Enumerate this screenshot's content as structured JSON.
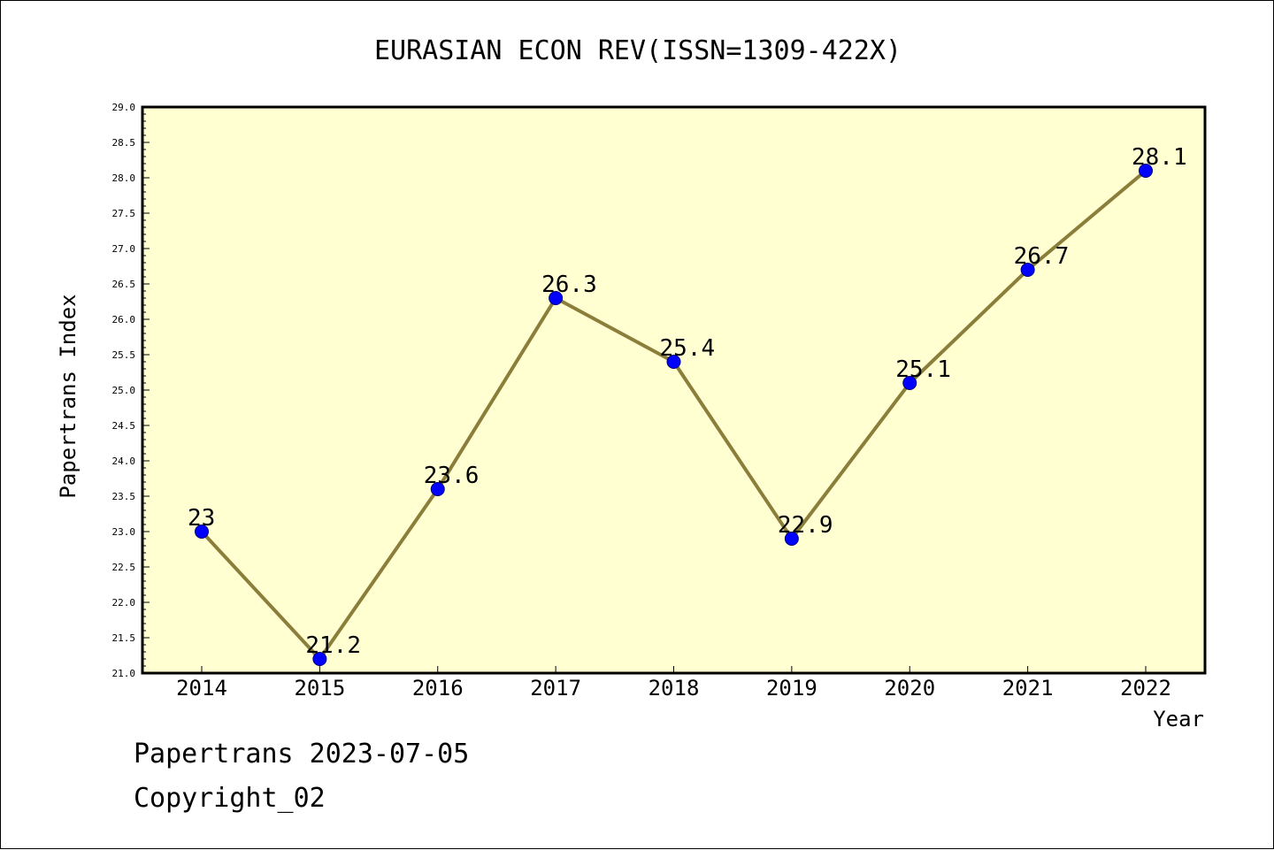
{
  "chart_data": {
    "type": "line",
    "title": "EURASIAN ECON REV(ISSN=1309-422X)",
    "xlabel": "Year",
    "ylabel": "Papertrans Index",
    "categories": [
      "2014",
      "2015",
      "2016",
      "2017",
      "2018",
      "2019",
      "2020",
      "2021",
      "2022"
    ],
    "series": [
      {
        "values": [
          23,
          21.2,
          23.6,
          26.3,
          25.4,
          22.9,
          25.1,
          26.7,
          28.1
        ],
        "labels": [
          "23",
          "21.2",
          "23.6",
          "26.3",
          "25.4",
          "22.9",
          "25.1",
          "26.7",
          "28.1"
        ]
      }
    ],
    "ylim": [
      21.0,
      29.0
    ],
    "yticks": [
      "21.0",
      "21.5",
      "22.0",
      "22.5",
      "23.0",
      "23.5",
      "24.0",
      "24.5",
      "25.0",
      "25.5",
      "26.0",
      "26.5",
      "27.0",
      "27.5",
      "28.0",
      "28.5",
      "29.0"
    ],
    "grid": false,
    "colors": {
      "plot_background": "#ffffd2",
      "line": "#8b7d3a",
      "marker": "#0000ff"
    }
  },
  "footer": {
    "line1": "Papertrans 2023-07-05",
    "line2": "Copyright_02"
  }
}
